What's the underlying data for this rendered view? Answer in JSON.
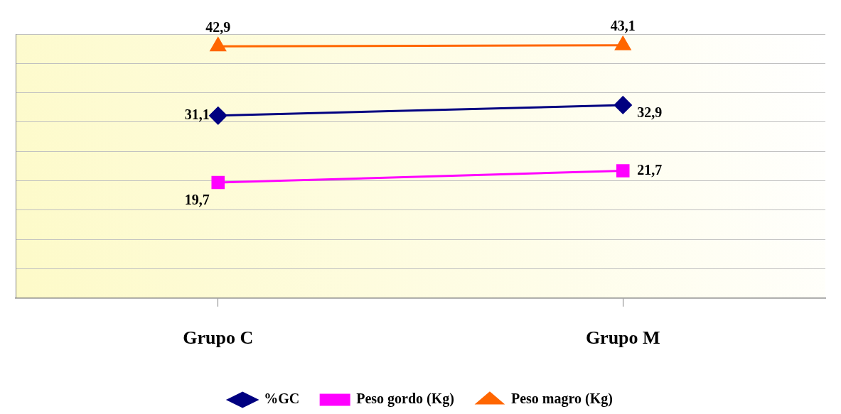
{
  "chart_data": {
    "type": "line",
    "categories": [
      "Grupo C",
      "Grupo M"
    ],
    "series": [
      {
        "name": "%GC",
        "color": "#000080",
        "values": [
          31.1,
          32.9
        ],
        "marker": "diamond",
        "value_labels": [
          "31,1",
          "32,9"
        ]
      },
      {
        "name": "Peso gordo (Kg)",
        "color": "#ff00ff",
        "values": [
          19.7,
          21.7
        ],
        "marker": "square",
        "value_labels": [
          "19,7",
          "21,7"
        ]
      },
      {
        "name": "Peso magro (Kg)",
        "color": "#ff6600",
        "values": [
          42.9,
          43.1
        ],
        "marker": "triangle",
        "value_labels": [
          "42,9",
          "43,1"
        ]
      }
    ],
    "tick_labels": "x",
    "grid": "y",
    "legend": "bottom",
    "line_style": "solid"
  }
}
